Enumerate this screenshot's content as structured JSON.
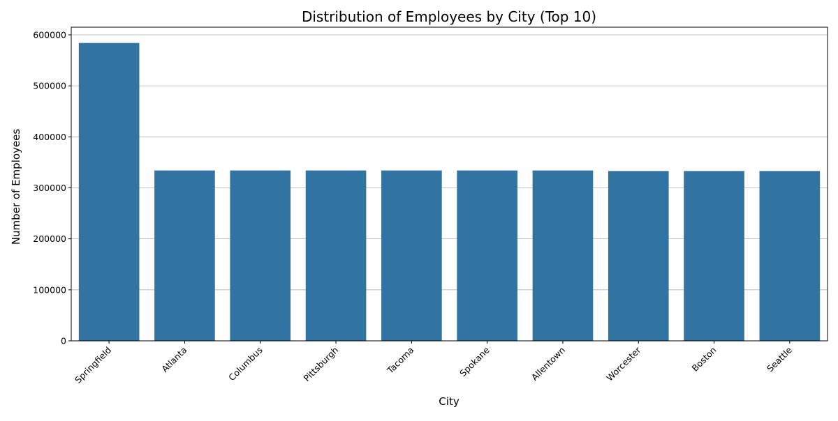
{
  "chart_data": {
    "type": "bar",
    "title": "Distribution of Employees by City (Top 10)",
    "xlabel": "City",
    "ylabel": "Number of Employees",
    "categories": [
      "Springfield",
      "Atlanta",
      "Columbus",
      "Pittsburgh",
      "Tacoma",
      "Spokane",
      "Allentown",
      "Worcester",
      "Boston",
      "Seattle"
    ],
    "values": [
      584000,
      334000,
      334000,
      334000,
      334000,
      334000,
      334000,
      333000,
      333000,
      333000
    ],
    "ylim": [
      0,
      615000
    ],
    "yticks": [
      0,
      100000,
      200000,
      300000,
      400000,
      500000,
      600000
    ],
    "ytick_labels": [
      "0",
      "100000",
      "200000",
      "300000",
      "400000",
      "500000",
      "600000"
    ],
    "grid": "horizontal",
    "bar_color": "#3274a1"
  }
}
